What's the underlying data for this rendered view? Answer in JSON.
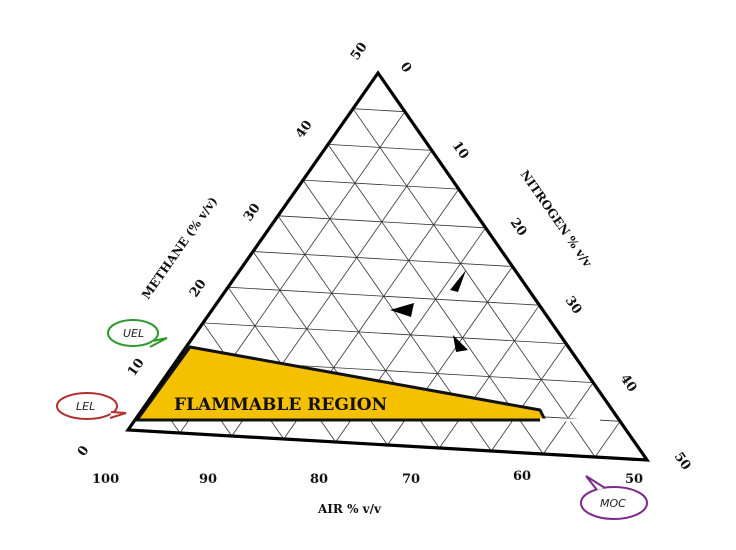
{
  "diagram": {
    "axes": {
      "methane": {
        "title": "METHANE (% v/v)",
        "ticks": [
          "0",
          "10",
          "20",
          "30",
          "40",
          "50"
        ]
      },
      "nitrogen": {
        "title": "NITROGEN % v/v",
        "ticks": [
          "0",
          "10",
          "20",
          "30",
          "40",
          "50"
        ]
      },
      "air": {
        "title": "AIR % v/v",
        "ticks": [
          "100",
          "90",
          "80",
          "70",
          "60",
          "50"
        ]
      }
    },
    "region": {
      "label": "FLAMMABLE REGION",
      "fill": "#f5c000"
    },
    "callouts": [
      {
        "label": "UEL",
        "color": "#2e9a2e"
      },
      {
        "label": "LEL",
        "color": "#b03030"
      },
      {
        "label": "MOC",
        "color": "#7a2a8a"
      }
    ]
  }
}
